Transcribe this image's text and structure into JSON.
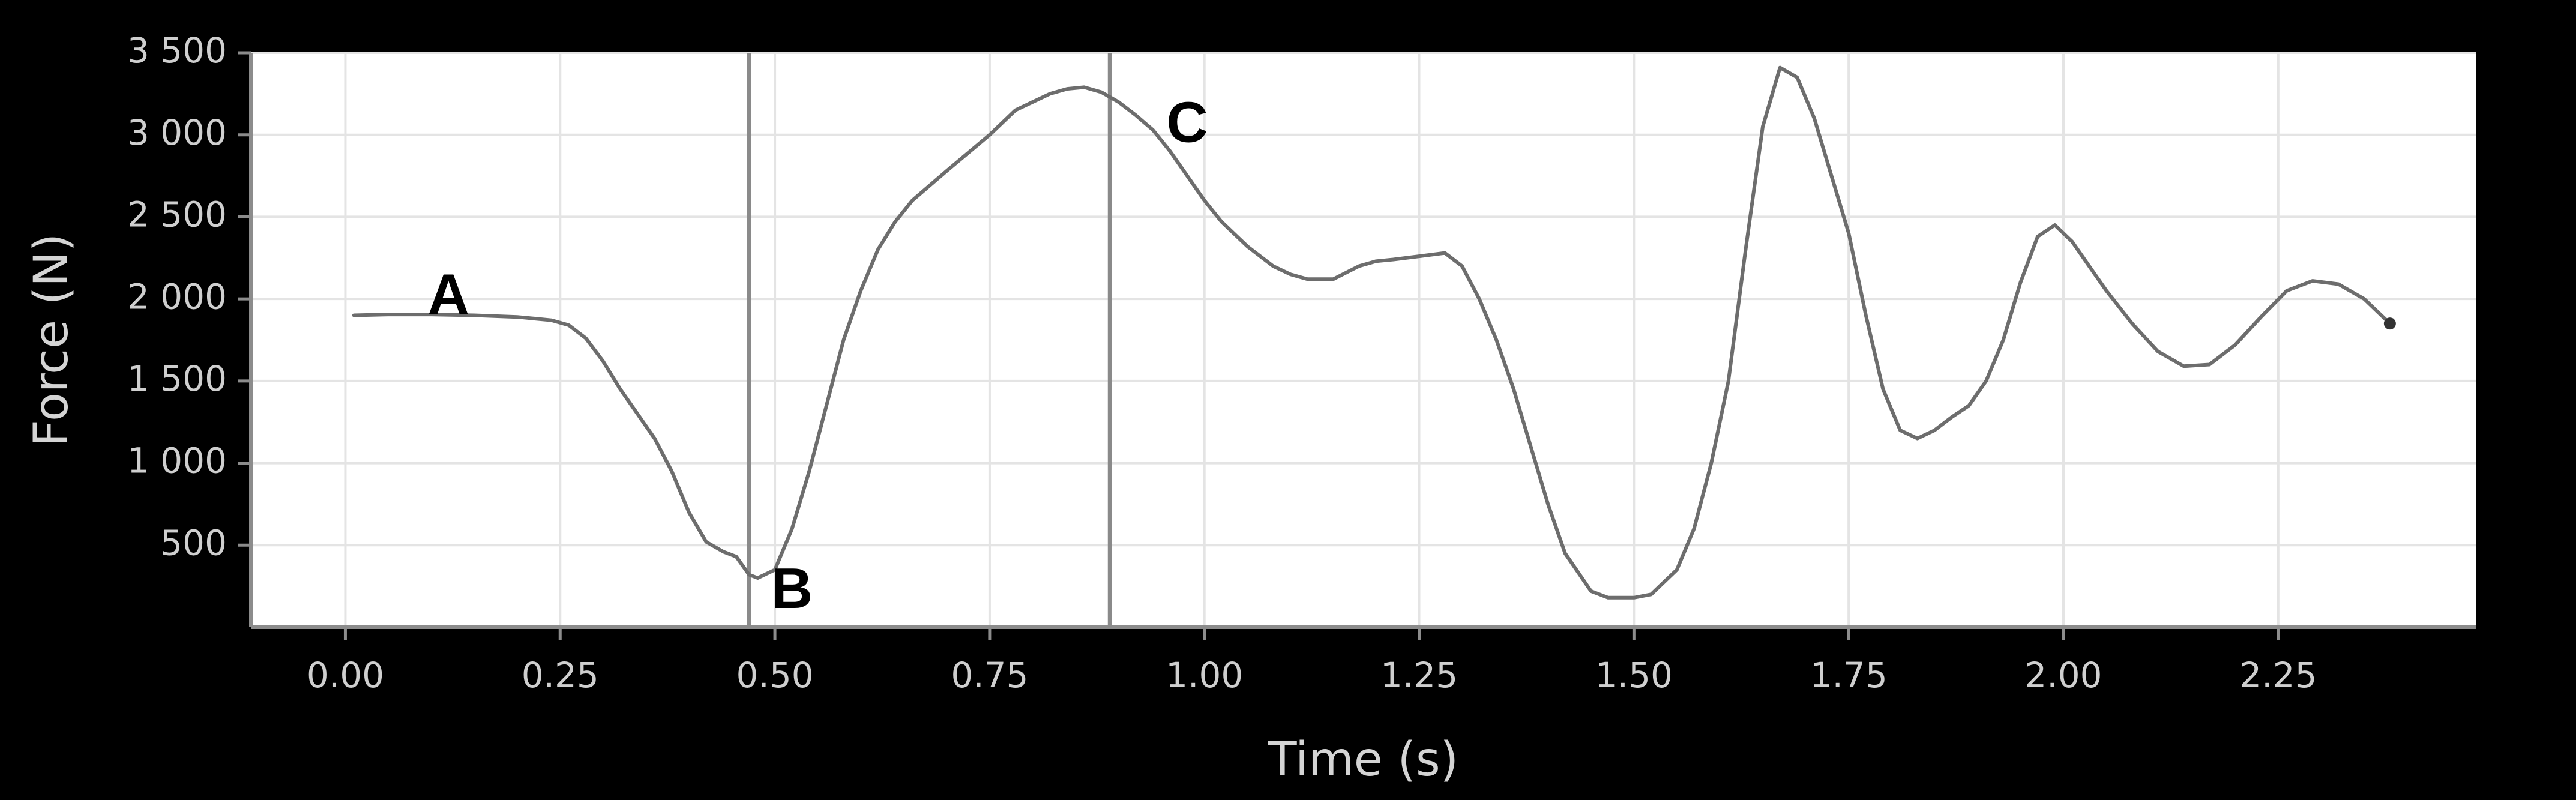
{
  "colors": {
    "background": "#000000",
    "plot_background": "#ffffff",
    "grid": "#e4e4e4",
    "series": "#6d6d6d",
    "marker_line": "#8a8a8a",
    "tick_text": "#cfcfcf",
    "axis_title": "#d4d4d4",
    "annotation_text": "#000000"
  },
  "chart_data": {
    "type": "line",
    "title": "",
    "xlabel": "Time (s)",
    "ylabel": "Force (N)",
    "xlim": [
      -0.11,
      2.48
    ],
    "ylim": [
      0,
      3500
    ],
    "x_ticks": [
      0.0,
      0.25,
      0.5,
      0.75,
      1.0,
      1.25,
      1.5,
      1.75,
      2.0,
      2.25
    ],
    "x_tick_labels": [
      "0.00",
      "0.25",
      "0.50",
      "0.75",
      "1.00",
      "1.25",
      "1.50",
      "1.75",
      "2.00",
      "2.25"
    ],
    "y_ticks": [
      500,
      1000,
      1500,
      2000,
      2500,
      3000,
      3500
    ],
    "y_tick_labels": [
      "500",
      "1 000",
      "1 500",
      "2 000",
      "2 500",
      "3 000",
      "3 500"
    ],
    "grid": true,
    "series": [
      {
        "x": [
          0.01,
          0.05,
          0.1,
          0.15,
          0.2,
          0.24,
          0.26,
          0.28,
          0.3,
          0.32,
          0.34,
          0.36,
          0.38,
          0.4,
          0.42,
          0.44,
          0.455,
          0.47,
          0.48,
          0.5,
          0.52,
          0.54,
          0.56,
          0.58,
          0.6,
          0.62,
          0.64,
          0.66,
          0.7,
          0.75,
          0.78,
          0.8,
          0.82,
          0.84,
          0.86,
          0.88,
          0.9,
          0.92,
          0.94,
          0.96,
          0.98,
          1.0,
          1.02,
          1.05,
          1.08,
          1.1,
          1.12,
          1.15,
          1.18,
          1.2,
          1.22,
          1.25,
          1.28,
          1.3,
          1.32,
          1.34,
          1.36,
          1.38,
          1.4,
          1.42,
          1.45,
          1.47,
          1.5,
          1.52,
          1.55,
          1.57,
          1.59,
          1.61,
          1.63,
          1.65,
          1.67,
          1.69,
          1.71,
          1.73,
          1.75,
          1.77,
          1.79,
          1.81,
          1.83,
          1.85,
          1.87,
          1.89,
          1.91,
          1.93,
          1.95,
          1.97,
          1.99,
          2.01,
          2.03,
          2.05,
          2.08,
          2.11,
          2.14,
          2.17,
          2.2,
          2.23,
          2.26,
          2.29,
          2.32,
          2.35,
          2.38
        ],
        "y": [
          1900,
          1905,
          1905,
          1900,
          1890,
          1870,
          1840,
          1760,
          1620,
          1450,
          1300,
          1150,
          950,
          700,
          520,
          460,
          430,
          320,
          300,
          350,
          600,
          950,
          1350,
          1750,
          2050,
          2300,
          2470,
          2600,
          2780,
          3000,
          3150,
          3200,
          3250,
          3280,
          3290,
          3260,
          3200,
          3120,
          3030,
          2900,
          2750,
          2600,
          2470,
          2320,
          2200,
          2150,
          2120,
          2120,
          2200,
          2230,
          2240,
          2260,
          2280,
          2200,
          2000,
          1750,
          1450,
          1100,
          750,
          450,
          220,
          180,
          180,
          200,
          350,
          600,
          1000,
          1500,
          2300,
          3050,
          3410,
          3350,
          3100,
          2750,
          2400,
          1900,
          1450,
          1200,
          1150,
          1200,
          1280,
          1350,
          1500,
          1750,
          2100,
          2380,
          2450,
          2350,
          2200,
          2050,
          1850,
          1680,
          1590,
          1600,
          1720,
          1890,
          2050,
          2110,
          2090,
          2000,
          1850
        ]
      }
    ],
    "vertical_markers": [
      0.47,
      0.89
    ],
    "annotations": [
      {
        "text": "A",
        "x": 0.12,
        "y": 2000
      },
      {
        "text": "B",
        "x": 0.52,
        "y": 210
      },
      {
        "text": "C",
        "x": 0.98,
        "y": 3050
      }
    ]
  }
}
